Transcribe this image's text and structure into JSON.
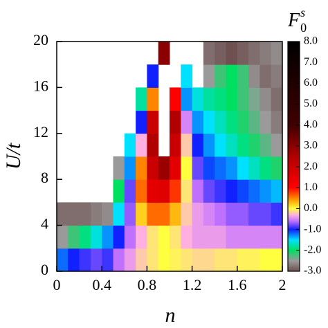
{
  "chart_data": {
    "type": "heatmap",
    "xlabel": "n",
    "ylabel": "U/t",
    "colorbar_title": {
      "base": "F",
      "sub": "0",
      "sup": "s"
    },
    "xlim": [
      0,
      2
    ],
    "ylim": [
      0,
      20
    ],
    "xticks": [
      0,
      0.4,
      0.8,
      1.2,
      1.6,
      2
    ],
    "yticks": [
      0,
      4,
      8,
      12,
      16,
      20
    ],
    "clim": [
      -3,
      8
    ],
    "cticks": [
      {
        "value": 8,
        "label": "8.0"
      },
      {
        "value": 7,
        "label": "7.0"
      },
      {
        "value": 6,
        "label": "6.0"
      },
      {
        "value": 5,
        "label": "5.0"
      },
      {
        "value": 4,
        "label": "4.0"
      },
      {
        "value": 3,
        "label": "3.0"
      },
      {
        "value": 2,
        "label": "2.0"
      },
      {
        "value": 1,
        "label": "1.0"
      },
      {
        "value": 0,
        "label": "0.0"
      },
      {
        "value": -1,
        "label": "-1.0"
      },
      {
        "value": -2,
        "label": "-2.0"
      },
      {
        "value": -3,
        "label": "-3.0"
      }
    ],
    "colormap": [
      [
        -3,
        "#6e5050"
      ],
      [
        -2.5,
        "#9a9a9a"
      ],
      [
        -2,
        "#00e060"
      ],
      [
        -1.5,
        "#00e0ff"
      ],
      [
        -1,
        "#1020ff"
      ],
      [
        -0.6,
        "#c070ff"
      ],
      [
        -0.3,
        "#ffb0e0"
      ],
      [
        0,
        "#ffff40"
      ],
      [
        0.4,
        "#ffa000"
      ],
      [
        1,
        "#ff0000"
      ],
      [
        2.5,
        "#b00000"
      ],
      [
        4,
        "#400000"
      ],
      [
        8,
        "#000000"
      ]
    ],
    "x": [
      0.05,
      0.15,
      0.25,
      0.35,
      0.45,
      0.55,
      0.65,
      0.75,
      0.85,
      0.95,
      1.05,
      1.15,
      1.25,
      1.35,
      1.45,
      1.55,
      1.65,
      1.75,
      1.85,
      1.95
    ],
    "y": [
      1,
      3,
      5,
      7,
      9,
      11,
      13,
      15,
      17,
      19
    ],
    "z": [
      [
        -1.2,
        -1.0,
        -0.9,
        -0.8,
        -0.9,
        -0.6,
        -0.4,
        -0.2,
        -0.1,
        0.0,
        -0.05,
        -0.1,
        -0.15,
        -0.15,
        -0.1,
        -0.1,
        -0.05,
        -0.05,
        0.0,
        0.0
      ],
      [
        -2.5,
        -2.2,
        -1.9,
        -1.6,
        -1.3,
        -1.0,
        -0.6,
        -0.3,
        -0.1,
        0.0,
        -0.1,
        -0.3,
        -0.4,
        -0.4,
        -0.4,
        -0.5,
        -0.5,
        -0.5,
        -0.5,
        -0.5
      ],
      [
        -2.8,
        -2.8,
        -2.8,
        -2.7,
        -2.6,
        -1.5,
        -0.7,
        0.2,
        0.6,
        0.6,
        0.3,
        -0.2,
        -0.4,
        -0.5,
        -0.6,
        -0.7,
        -0.7,
        -0.8,
        -0.8,
        -0.9
      ],
      [
        null,
        null,
        null,
        null,
        null,
        -2.0,
        -0.8,
        0.6,
        1.5,
        1.6,
        0.8,
        -0.1,
        -0.6,
        -0.8,
        -0.9,
        -1.0,
        -1.1,
        -1.2,
        -1.3,
        -1.4
      ],
      [
        null,
        null,
        null,
        null,
        null,
        -2.5,
        -1.3,
        0.5,
        2.0,
        2.8,
        1.5,
        0.0,
        -0.8,
        -1.1,
        -1.2,
        -1.3,
        -1.5,
        -1.7,
        -1.9,
        -2.1
      ],
      [
        null,
        null,
        null,
        null,
        null,
        null,
        -1.5,
        -0.3,
        2.5,
        null,
        2.0,
        -0.2,
        -1.0,
        -1.3,
        -1.5,
        -1.7,
        -1.9,
        -2.1,
        -2.3,
        -2.5
      ],
      [
        null,
        null,
        null,
        null,
        null,
        null,
        null,
        -1.0,
        2.0,
        null,
        2.5,
        -0.5,
        -1.3,
        -1.5,
        -1.7,
        -1.9,
        -2.1,
        -2.3,
        -2.5,
        -2.7
      ],
      [
        null,
        null,
        null,
        null,
        null,
        null,
        null,
        -1.8,
        0.5,
        null,
        1.0,
        -1.3,
        -1.6,
        -1.8,
        -1.9,
        -2.0,
        -2.2,
        -2.4,
        -2.6,
        -2.8
      ],
      [
        null,
        null,
        null,
        null,
        null,
        null,
        null,
        null,
        -1.0,
        null,
        null,
        -1.5,
        null,
        -2.5,
        -2.2,
        -2.0,
        -2.2,
        -2.6,
        -2.8,
        -2.7
      ],
      [
        null,
        null,
        null,
        null,
        null,
        null,
        null,
        null,
        null,
        3.0,
        null,
        null,
        null,
        -2.8,
        -2.9,
        -3.0,
        -2.9,
        -2.8,
        -2.7,
        -2.6
      ]
    ]
  }
}
